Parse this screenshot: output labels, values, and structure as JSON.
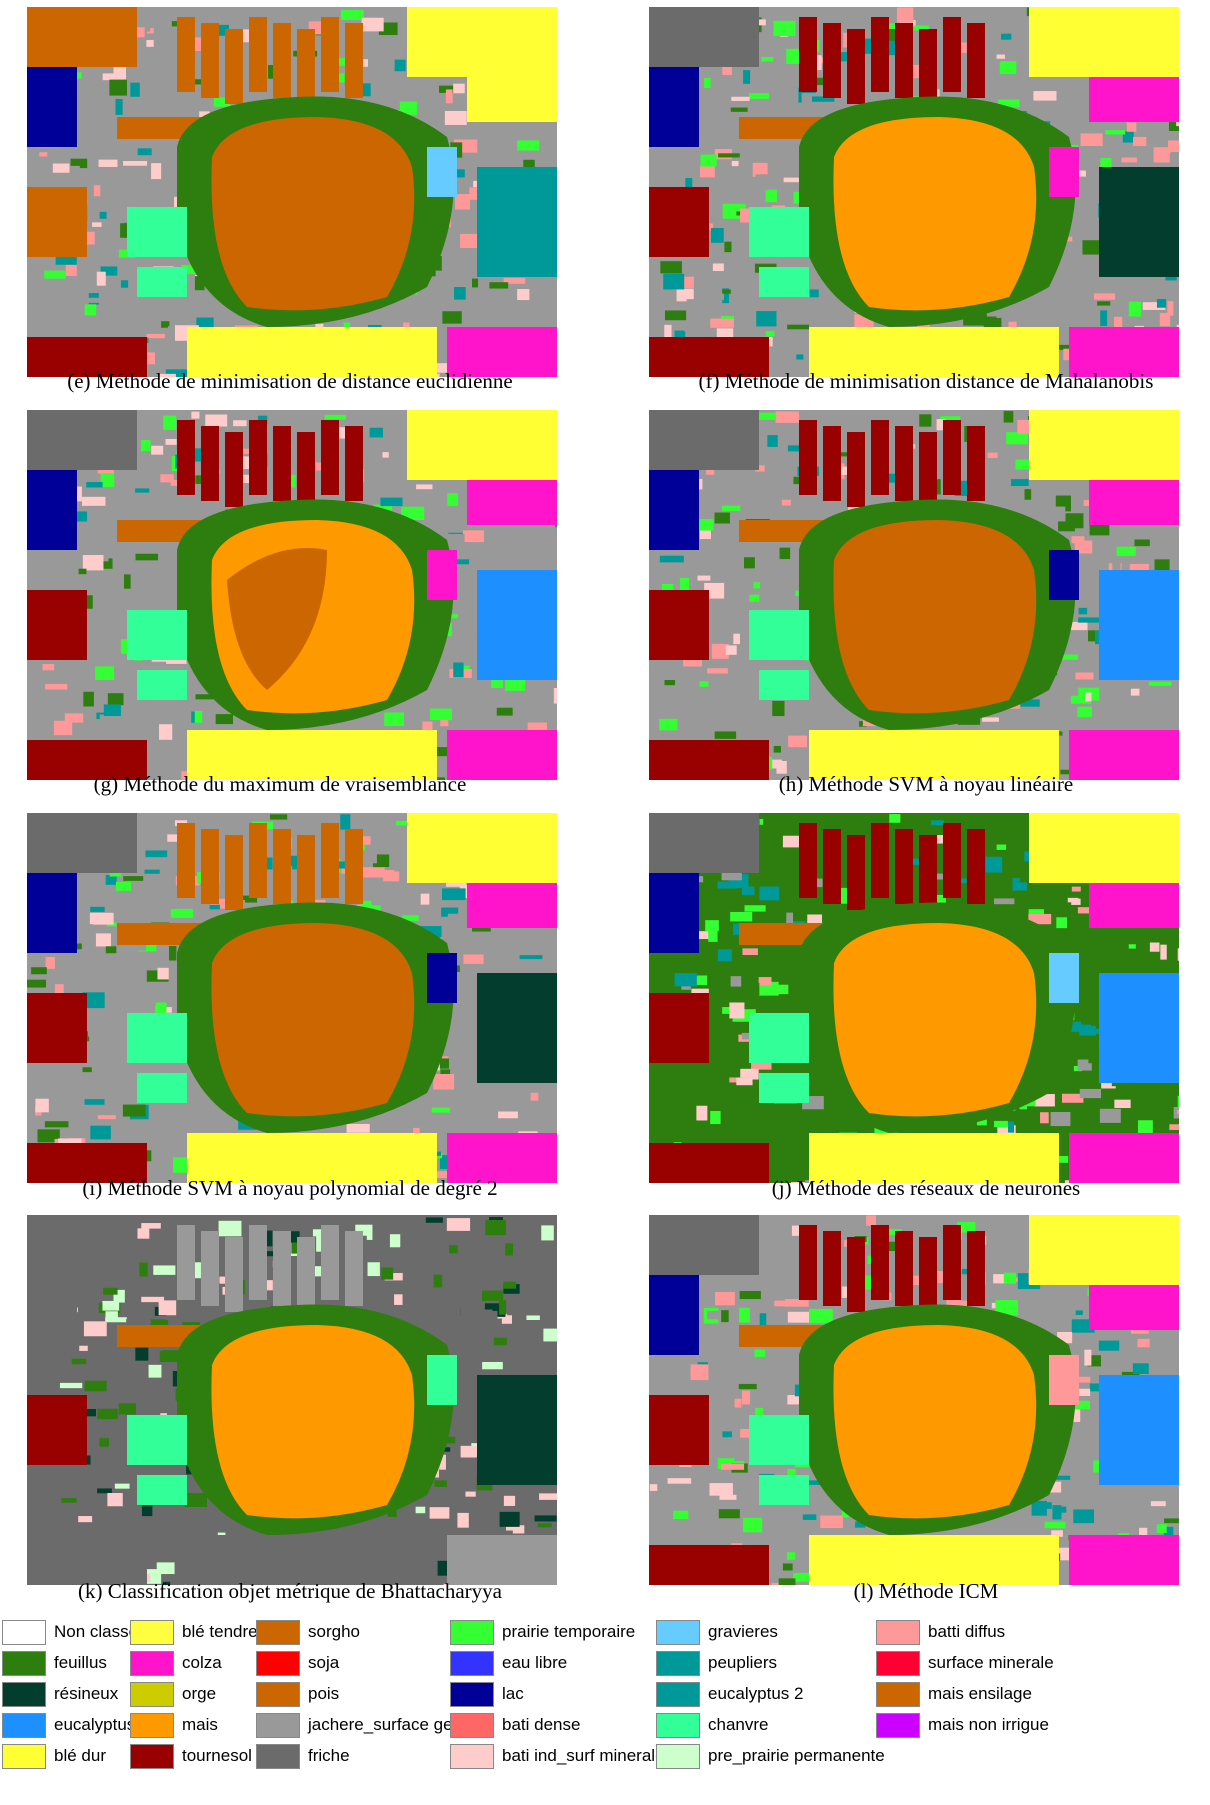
{
  "panels": [
    {
      "id": "e",
      "caption": "(e) Méthode de minimisation de distance euclidienne",
      "variant": 0
    },
    {
      "id": "f",
      "caption": "(f) Méthode de minimisation distance de Mahalanobis",
      "variant": 1
    },
    {
      "id": "g",
      "caption": "(g) Méthode du maximum de vraisemblance",
      "variant": 2
    },
    {
      "id": "h",
      "caption": "(h) Méthode SVM à noyau linéaire",
      "variant": 3
    },
    {
      "id": "i",
      "caption": "(i) Méthode SVM à noyau polynomial de degré 2",
      "variant": 4
    },
    {
      "id": "j",
      "caption": "(j) Méthode des réseaux de neurones",
      "variant": 5
    },
    {
      "id": "k",
      "caption": "(k) Classification objet métrique de Bhattacharyya",
      "variant": 6
    },
    {
      "id": "l",
      "caption": "(l) Méthode ICM",
      "variant": 7
    }
  ],
  "legend": [
    {
      "label": "Non classé",
      "color": "#ffffff"
    },
    {
      "label": "feuillus",
      "color": "#2e7d0f"
    },
    {
      "label": "résineux",
      "color": "#033d2e"
    },
    {
      "label": "eucalyptus",
      "color": "#1e8fff"
    },
    {
      "label": "blé dur",
      "color": "#ffff33"
    },
    {
      "label": "blé tendre",
      "color": "#ffff40"
    },
    {
      "label": "colza",
      "color": "#ff14cc"
    },
    {
      "label": "orge",
      "color": "#cccc00"
    },
    {
      "label": "mais",
      "color": "#ff9900"
    },
    {
      "label": "tournesol",
      "color": "#990000"
    },
    {
      "label": "sorgho",
      "color": "#cc6600"
    },
    {
      "label": "soja",
      "color": "#ff0000"
    },
    {
      "label": "pois",
      "color": "#cc6600"
    },
    {
      "label": "jachere_surface gel",
      "color": "#999999"
    },
    {
      "label": "friche",
      "color": "#6b6b6b"
    },
    {
      "label": "prairie temporaire",
      "color": "#33ff33"
    },
    {
      "label": "eau libre",
      "color": "#3333ff"
    },
    {
      "label": "lac",
      "color": "#000099"
    },
    {
      "label": "bati dense",
      "color": "#ff6666"
    },
    {
      "label": "bati ind_surf minerale",
      "color": "#ffcccc"
    },
    {
      "label": "gravieres",
      "color": "#66ccff"
    },
    {
      "label": "peupliers",
      "color": "#009999"
    },
    {
      "label": "eucalyptus 2",
      "color": "#009999"
    },
    {
      "label": "chanvre",
      "color": "#33ff99"
    },
    {
      "label": "pre_prairie permanente",
      "color": "#ccffcc"
    },
    {
      "label": "batti diffus",
      "color": "#ff9999"
    },
    {
      "label": "surface minerale",
      "color": "#ff0033"
    },
    {
      "label": "mais ensilage",
      "color": "#cc6600"
    },
    {
      "label": "mais non irrigue",
      "color": "#cc00ff"
    }
  ]
}
